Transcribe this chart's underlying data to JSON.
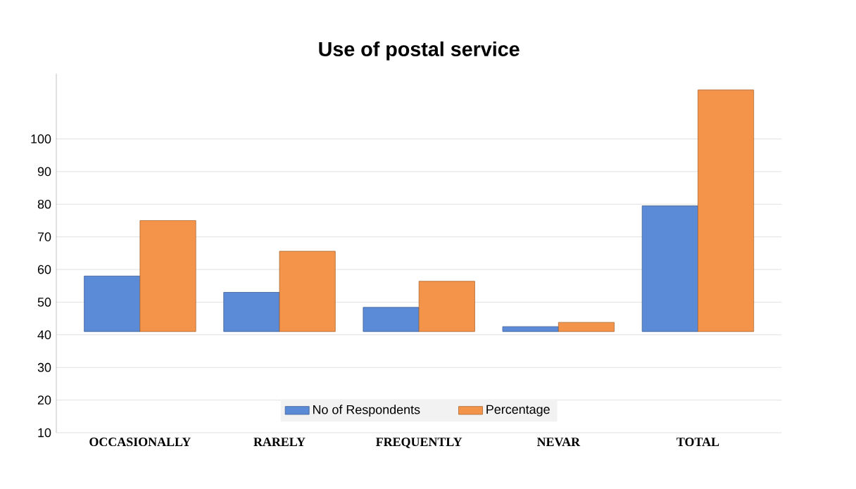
{
  "chart_data": {
    "type": "bar",
    "title": "Use of postal service",
    "categories": [
      "OCCASIONALLY",
      "RARELY",
      "FREQUENTLY",
      "NEVAR",
      "TOTAL"
    ],
    "series": [
      {
        "name": "No of Respondents",
        "color": "#5b8ad6",
        "values": [
          17,
          12,
          7.4,
          1.5,
          38.5
        ],
        "base": [
          41,
          41,
          41,
          41,
          41
        ]
      },
      {
        "name": "Percentage",
        "color": "#f4944a",
        "values": [
          34,
          24.6,
          15.4,
          2.8,
          74
        ],
        "base": [
          41,
          41,
          41,
          41,
          41
        ]
      }
    ],
    "ylim": [
      10,
      120
    ],
    "yticks": [
      10,
      20,
      30,
      40,
      50,
      60,
      70,
      80,
      90,
      100
    ],
    "grid": "y",
    "legend": "bottom"
  }
}
